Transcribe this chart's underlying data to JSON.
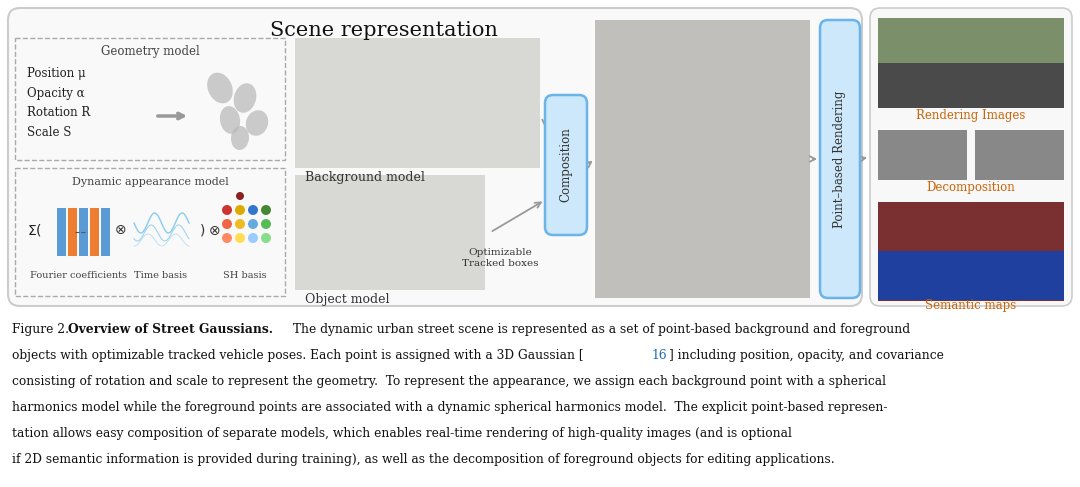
{
  "bg_color": "#ffffff",
  "figure_width": 10.8,
  "figure_height": 4.87,
  "title": "Scene representation",
  "title_fontsize": 15,
  "caption_fontsize": 8.8,
  "geom_title": "Geometry model",
  "geom_items": [
    "Position μ",
    "Opacity α",
    "Rotation R",
    "Scale S"
  ],
  "dyn_title": "Dynamic appearance model",
  "dyn_items": [
    "Fourier coefficients",
    "Time basis",
    "SH basis"
  ],
  "bg_model_label": "Background model",
  "obj_model_label": "Object model",
  "comp_label": "Composition",
  "opt_label": "Optimizable\nTracked boxes",
  "point_render_label": "Point–based Rendering",
  "render_img_label": "Rendering Images",
  "decomp_label": "Decomposition",
  "semantic_label": "Semantic maps",
  "caption_ref_color": "#1a6db5",
  "orange_label_color": "#c8650a",
  "comp_box_color": "#cce8fa",
  "comp_edge_color": "#6ab4e8",
  "right_box_bg": "#f0f0f0",
  "right_box_edge": "#bbbbbb"
}
